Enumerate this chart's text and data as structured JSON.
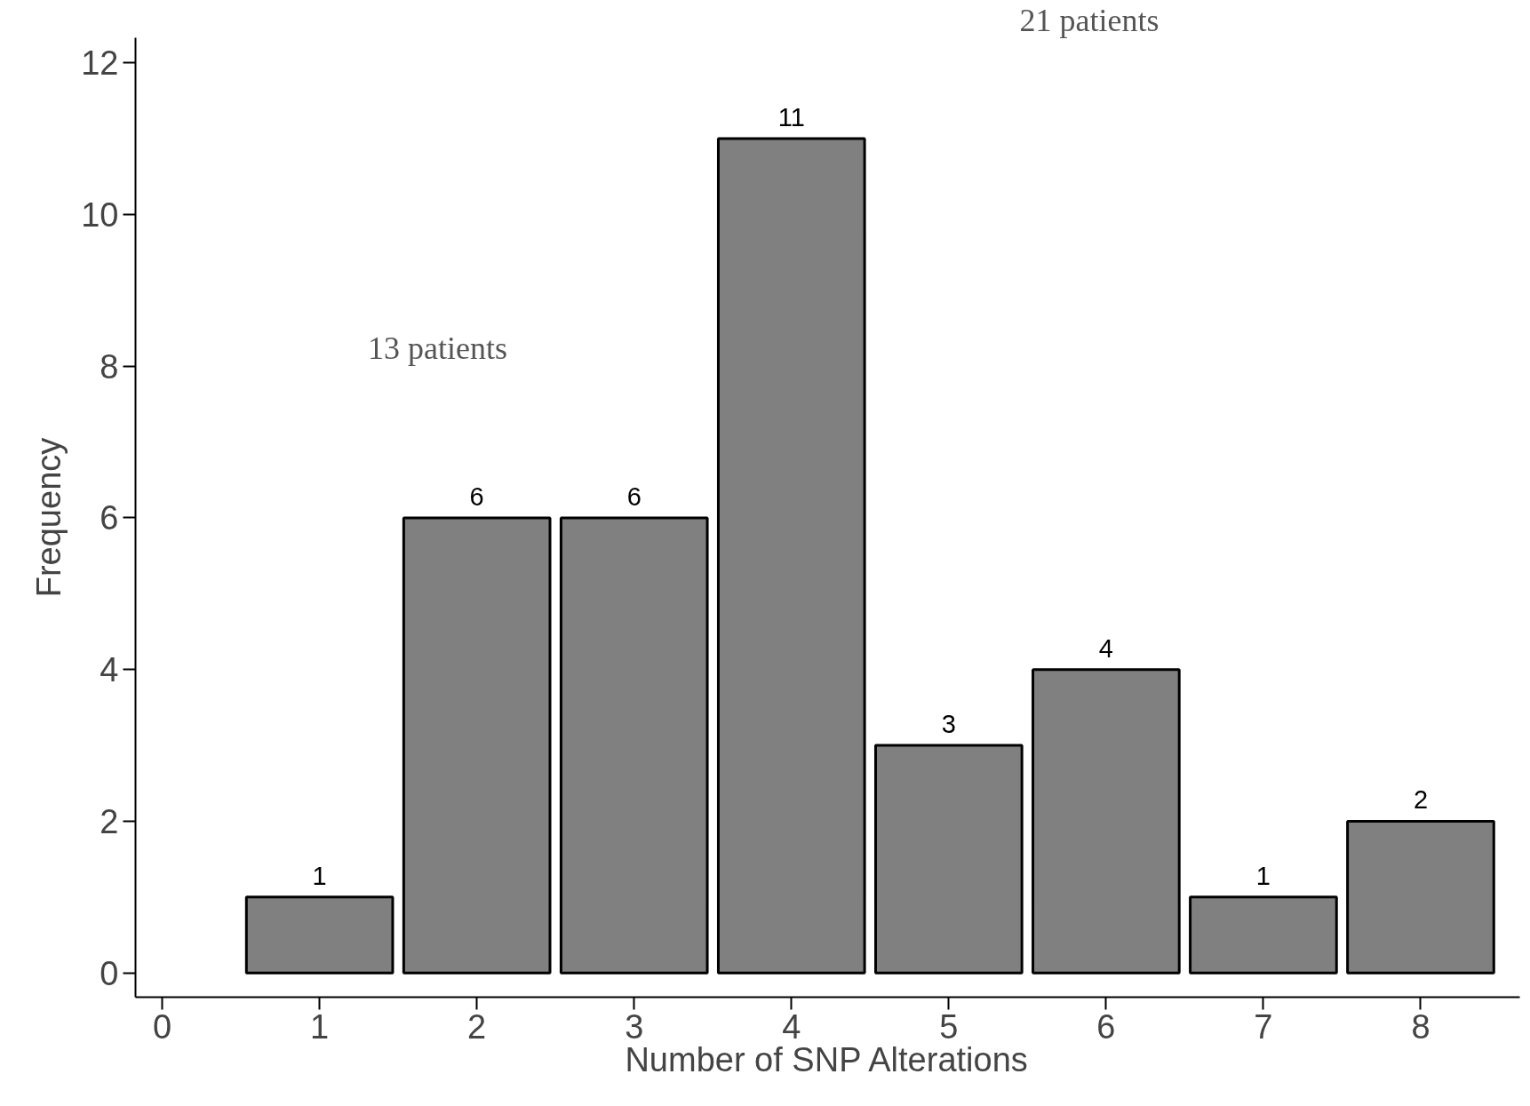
{
  "chart_data": {
    "type": "bar",
    "xlabel": "Number of SNP Alterations",
    "ylabel": "Frequency",
    "x": [
      1,
      2,
      3,
      4,
      5,
      6,
      7,
      8
    ],
    "values": [
      1,
      6,
      6,
      11,
      3,
      4,
      1,
      2
    ],
    "color": "#808080",
    "data_labels": true,
    "xlim": [
      -0.17,
      8.63
    ],
    "xticks": [
      0,
      1,
      2,
      3,
      4,
      5,
      6,
      7,
      8
    ],
    "ylim": [
      -0.32,
      12.33
    ],
    "yticks": [
      0,
      2,
      4,
      6,
      8,
      10,
      12
    ],
    "grid": false,
    "annotations": [
      "13 patients",
      "21 patients"
    ]
  }
}
